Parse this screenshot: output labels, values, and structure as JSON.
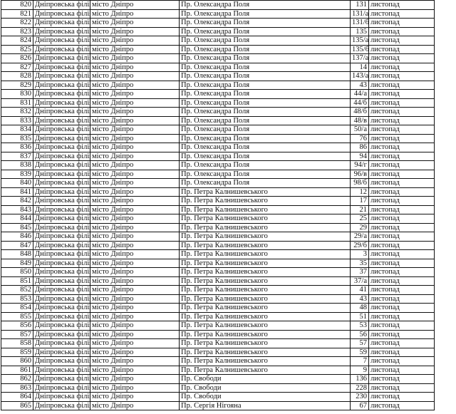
{
  "table": {
    "rows": [
      [
        820,
        "Дніпровська філія",
        "місто Дніпро",
        "Пр. Олександра Поля",
        "131",
        "листопад"
      ],
      [
        821,
        "Дніпровська філія",
        "місто Дніпро",
        "Пр. Олександра Поля",
        "131/а",
        "листопад"
      ],
      [
        822,
        "Дніпровська філія",
        "місто Дніпро",
        "Пр. Олександра Поля",
        "131/б",
        "листопад"
      ],
      [
        823,
        "Дніпровська філія",
        "місто Дніпро",
        "Пр. Олександра Поля",
        "135",
        "листопад"
      ],
      [
        824,
        "Дніпровська філія",
        "місто Дніпро",
        "Пр. Олександра Поля",
        "135/а",
        "листопад"
      ],
      [
        825,
        "Дніпровська філія",
        "місто Дніпро",
        "Пр. Олександра Поля",
        "135/б",
        "листопад"
      ],
      [
        826,
        "Дніпровська філія",
        "місто Дніпро",
        "Пр. Олександра Поля",
        "137/а",
        "листопад"
      ],
      [
        827,
        "Дніпровська філія",
        "місто Дніпро",
        "Пр. Олександра Поля",
        "14",
        "листопад"
      ],
      [
        828,
        "Дніпровська філія",
        "місто Дніпро",
        "Пр. Олександра Поля",
        "143/а",
        "листопад"
      ],
      [
        829,
        "Дніпровська філія",
        "місто Дніпро",
        "Пр. Олександра Поля",
        "43",
        "листопад"
      ],
      [
        830,
        "Дніпровська філія",
        "місто Дніпро",
        "Пр. Олександра Поля",
        "44/а",
        "листопад"
      ],
      [
        831,
        "Дніпровська філія",
        "місто Дніпро",
        "Пр. Олександра Поля",
        "44/б",
        "листопад"
      ],
      [
        832,
        "Дніпровська філія",
        "місто Дніпро",
        "Пр. Олександра Поля",
        "48/б",
        "листопад"
      ],
      [
        833,
        "Дніпровська філія",
        "місто Дніпро",
        "Пр. Олександра Поля",
        "48/в",
        "листопад"
      ],
      [
        834,
        "Дніпровська філія",
        "місто Дніпро",
        "Пр. Олександра Поля",
        "50/а",
        "листопад"
      ],
      [
        835,
        "Дніпровська філія",
        "місто Дніпро",
        "Пр. Олександра Поля",
        "76",
        "листопад"
      ],
      [
        836,
        "Дніпровська філія",
        "місто Дніпро",
        "Пр. Олександра Поля",
        "86",
        "листопад"
      ],
      [
        837,
        "Дніпровська філія",
        "місто Дніпро",
        "Пр. Олександра Поля",
        "94",
        "листопад"
      ],
      [
        838,
        "Дніпровська філія",
        "місто Дніпро",
        "Пр. Олександра Поля",
        "94/г",
        "листопад"
      ],
      [
        839,
        "Дніпровська філія",
        "місто Дніпро",
        "Пр. Олександра Поля",
        "96/в",
        "листопад"
      ],
      [
        840,
        "Дніпровська філія",
        "місто Дніпро",
        "Пр. Олександра Поля",
        "98/б",
        "листопад"
      ],
      [
        841,
        "Дніпровська філія",
        "місто Дніпро",
        "Пр. Петра Калнишевського",
        "12",
        "листопад"
      ],
      [
        842,
        "Дніпровська філія",
        "місто Дніпро",
        "Пр. Петра Калнишевського",
        "17",
        "листопад"
      ],
      [
        843,
        "Дніпровська філія",
        "місто Дніпро",
        "Пр. Петра Калнишевського",
        "21",
        "листопад"
      ],
      [
        844,
        "Дніпровська філія",
        "місто Дніпро",
        "Пр. Петра Калнишевського",
        "25",
        "листопад"
      ],
      [
        845,
        "Дніпровська філія",
        "місто Дніпро",
        "Пр. Петра Калнишевського",
        "29",
        "листопад"
      ],
      [
        846,
        "Дніпровська філія",
        "місто Дніпро",
        "Пр. Петра Калнишевського",
        "29/а",
        "листопад"
      ],
      [
        847,
        "Дніпровська філія",
        "місто Дніпро",
        "Пр. Петра Калнишевського",
        "29/б",
        "листопад"
      ],
      [
        848,
        "Дніпровська філія",
        "місто Дніпро",
        "Пр. Петра Калнишевського",
        "3",
        "листопад"
      ],
      [
        849,
        "Дніпровська філія",
        "місто Дніпро",
        "Пр. Петра Калнишевського",
        "35",
        "листопад"
      ],
      [
        850,
        "Дніпровська філія",
        "місто Дніпро",
        "Пр. Петра Калнишевського",
        "37",
        "листопад"
      ],
      [
        851,
        "Дніпровська філія",
        "місто Дніпро",
        "Пр. Петра Калнишевського",
        "37/а",
        "листопад"
      ],
      [
        852,
        "Дніпровська філія",
        "місто Дніпро",
        "Пр. Петра Калнишевського",
        "41",
        "листопад"
      ],
      [
        853,
        "Дніпровська філія",
        "місто Дніпро",
        "Пр. Петра Калнишевського",
        "43",
        "листопад"
      ],
      [
        854,
        "Дніпровська філія",
        "місто Дніпро",
        "Пр. Петра Калнишевського",
        "48",
        "листопад"
      ],
      [
        855,
        "Дніпровська філія",
        "місто Дніпро",
        "Пр. Петра Калнишевського",
        "51",
        "листопад"
      ],
      [
        856,
        "Дніпровська філія",
        "місто Дніпро",
        "Пр. Петра Калнишевського",
        "53",
        "листопад"
      ],
      [
        857,
        "Дніпровська філія",
        "місто Дніпро",
        "Пр. Петра Калнишевського",
        "56",
        "листопад"
      ],
      [
        858,
        "Дніпровська філія",
        "місто Дніпро",
        "Пр. Петра Калнишевського",
        "57",
        "листопад"
      ],
      [
        859,
        "Дніпровська філія",
        "місто Дніпро",
        "Пр. Петра Калнишевського",
        "59",
        "листопад"
      ],
      [
        860,
        "Дніпровська філія",
        "місто Дніпро",
        "Пр. Петра Калнишевського",
        "7",
        "листопад"
      ],
      [
        861,
        "Дніпровська філія",
        "місто Дніпро",
        "Пр. Петра Калнишевського",
        "9",
        "листопад"
      ],
      [
        862,
        "Дніпровська філія",
        "місто Дніпро",
        "Пр. Свободи",
        "136",
        "листопад"
      ],
      [
        863,
        "Дніпровська філія",
        "місто Дніпро",
        "Пр. Свободи",
        "228",
        "листопад"
      ],
      [
        864,
        "Дніпровська філія",
        "місто Дніпро",
        "Пр. Свободи",
        "230",
        "листопад"
      ],
      [
        865,
        "Дніпровська філія",
        "місто Дніпро",
        "Пр. Сергія Нігояна",
        "67",
        "листопад"
      ]
    ]
  }
}
